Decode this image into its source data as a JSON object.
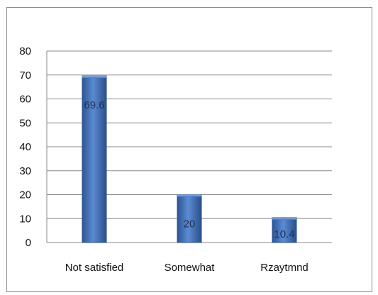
{
  "chart_data": {
    "type": "bar",
    "categories": [
      "Not satisfied",
      "Somewhat",
      "Rzaytmnd"
    ],
    "values": [
      69.6,
      20,
      10.4
    ],
    "data_labels": [
      "69.6",
      "20",
      "10.4"
    ],
    "yticks": [
      "0",
      "10",
      "20",
      "30",
      "40",
      "50",
      "60",
      "70",
      "80"
    ],
    "ylim": [
      0,
      80
    ],
    "grid": true,
    "bar_color": "#3f6fb8",
    "bar_edge_color": "#2a4f8c",
    "grid_color": "#8a8a8a"
  }
}
